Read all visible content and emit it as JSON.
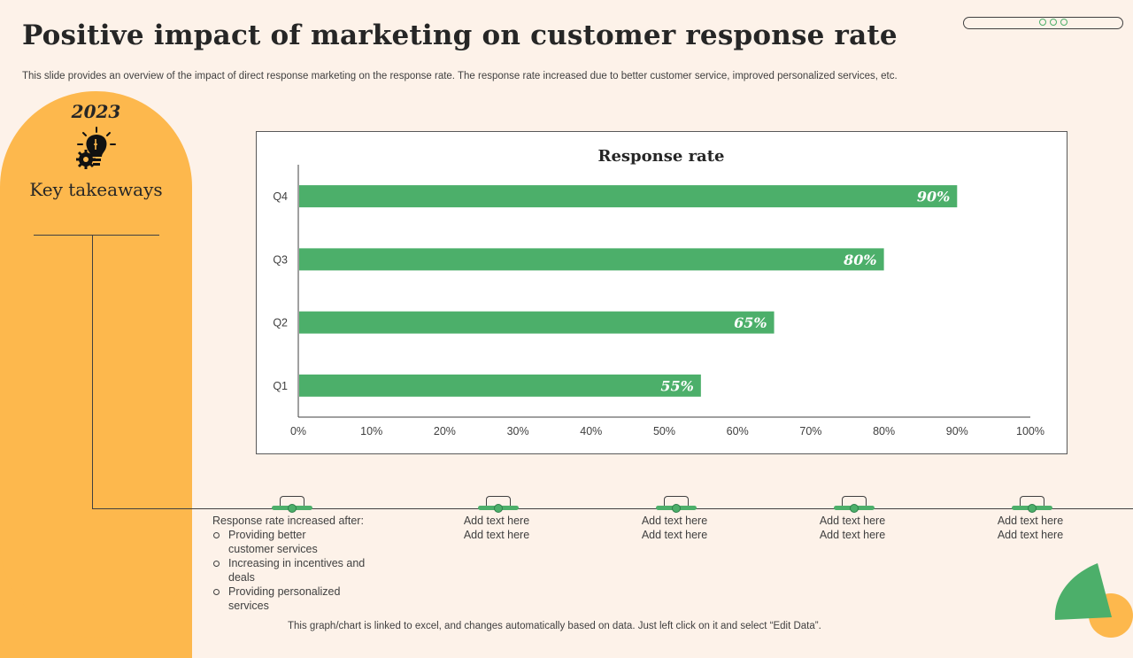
{
  "slide": {
    "title": "Positive impact of marketing on customer response rate",
    "subtitle": "This slide provides an overview of the impact of direct response marketing on the response rate. The response rate increased due to better customer service, improved personalized services, etc.",
    "footnote": "This graph/chart is linked to excel,  and changes automatically based on data. Just left click on it and select “Edit Data”."
  },
  "sidebar": {
    "year": "2023",
    "icon": "lightbulb-gear-icon",
    "heading": "Key takeaways"
  },
  "colors": {
    "accent_green": "#4caf6a",
    "accent_orange": "#fdb84d",
    "background": "#fdf2e9"
  },
  "timeline": {
    "response": {
      "lead": "Response rate increased after:",
      "items": [
        "Providing  better customer services",
        "Increasing  in incentives and deals",
        "Providing personalized  services"
      ]
    },
    "placeholders": [
      {
        "line1": "Add text here",
        "line2": "Add text here"
      },
      {
        "line1": "Add text here",
        "line2": "Add text here"
      },
      {
        "line1": "Add text here",
        "line2": "Add text here"
      },
      {
        "line1": "Add text here",
        "line2": "Add text here"
      }
    ]
  },
  "chart_data": {
    "type": "bar",
    "orientation": "horizontal",
    "title": "Response rate",
    "categories": [
      "Q1",
      "Q2",
      "Q3",
      "Q4"
    ],
    "values": [
      55,
      65,
      80,
      90
    ],
    "data_labels": [
      "55%",
      "65%",
      "80%",
      "90%"
    ],
    "xlabel": "",
    "ylabel": "",
    "xlim": [
      0,
      100
    ],
    "x_ticks": [
      "0%",
      "10%",
      "20%",
      "30%",
      "40%",
      "50%",
      "60%",
      "70%",
      "80%",
      "90%",
      "100%"
    ],
    "grid": false,
    "legend": "none"
  }
}
